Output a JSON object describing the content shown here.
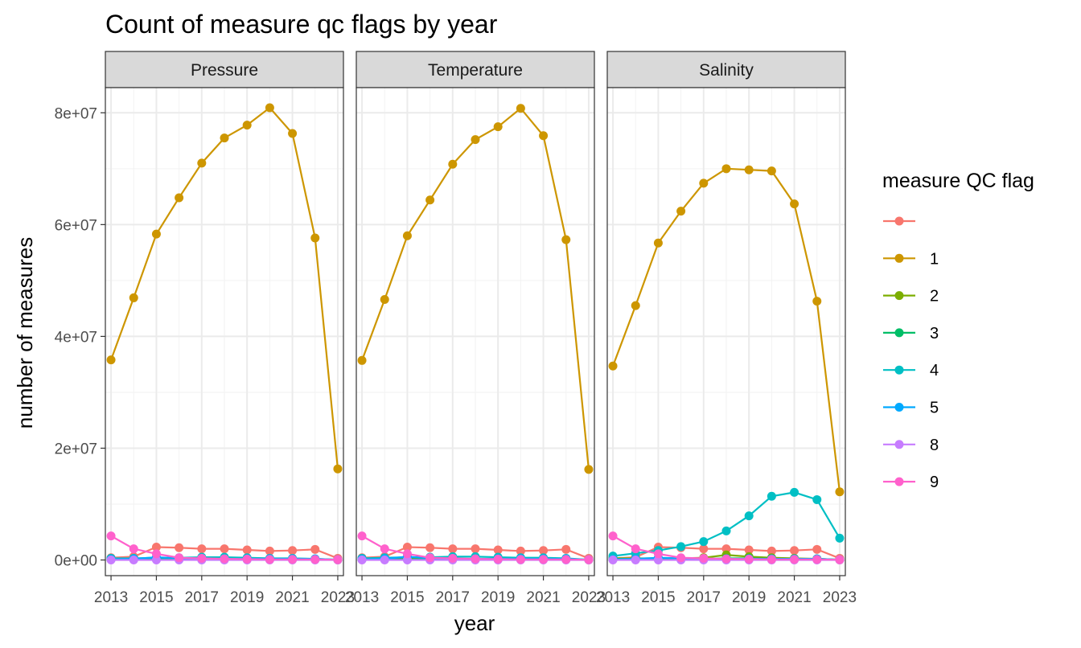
{
  "chart_data": {
    "type": "line",
    "title": "Count of measure qc flags by year",
    "xlabel": "year",
    "ylabel": "number of measures",
    "legend_title": "measure QC flag",
    "legend_position": "right",
    "grid": true,
    "xlim": [
      2012.75,
      2023.25
    ],
    "ylim": [
      -2800000,
      84500000
    ],
    "x_ticks": [
      2013,
      2015,
      2017,
      2019,
      2021,
      2023
    ],
    "x_tick_labels": [
      "2013",
      "2015",
      "2017",
      "2019",
      "2021",
      "2023"
    ],
    "y_ticks": [
      0,
      20000000,
      40000000,
      60000000,
      80000000
    ],
    "y_tick_labels": [
      "0e+00",
      "2e+07",
      "4e+07",
      "6e+07",
      "8e+07"
    ],
    "x": [
      2013,
      2014,
      2015,
      2016,
      2017,
      2018,
      2019,
      2020,
      2021,
      2022,
      2023
    ],
    "series_meta": [
      {
        "name": "",
        "color": "#F8766D"
      },
      {
        "name": "1",
        "color": "#CD9600"
      },
      {
        "name": "2",
        "color": "#7CAE00"
      },
      {
        "name": "3",
        "color": "#00BE67"
      },
      {
        "name": "4",
        "color": "#00BFC4"
      },
      {
        "name": "5",
        "color": "#00A9FF"
      },
      {
        "name": "8",
        "color": "#C77CFF"
      },
      {
        "name": "9",
        "color": "#FF61CC"
      }
    ],
    "panels": [
      {
        "name": "Pressure",
        "series": [
          {
            "name": "",
            "values": [
              400000,
              600000,
              2300000,
              2200000,
              2000000,
              2000000,
              1800000,
              1600000,
              1700000,
              1900000,
              300000
            ]
          },
          {
            "name": "1",
            "values": [
              35800000,
              46900000,
              58300000,
              64800000,
              71000000,
              75500000,
              77800000,
              80900000,
              76300000,
              57600000,
              16300000
            ]
          },
          {
            "name": "2",
            "values": [
              200000,
              200000,
              200000,
              200000,
              200000,
              200000,
              200000,
              150000,
              150000,
              150000,
              50000
            ]
          },
          {
            "name": "3",
            "values": [
              100000,
              100000,
              100000,
              100000,
              100000,
              100000,
              100000,
              100000,
              100000,
              100000,
              20000
            ]
          },
          {
            "name": "4",
            "values": [
              300000,
              300000,
              400000,
              400000,
              500000,
              500000,
              400000,
              300000,
              300000,
              200000,
              50000
            ]
          },
          {
            "name": "5",
            "values": [
              100000,
              200000,
              500000,
              300000,
              200000,
              200000,
              200000,
              200000,
              200000,
              200000,
              50000
            ]
          },
          {
            "name": "8",
            "values": [
              0,
              0,
              0,
              0,
              0,
              0,
              0,
              0,
              0,
              0,
              0
            ]
          },
          {
            "name": "9",
            "values": [
              4300000,
              2000000,
              1100000,
              400000,
              300000,
              200000,
              150000,
              100000,
              100000,
              100000,
              50000
            ]
          }
        ]
      },
      {
        "name": "Temperature",
        "series": [
          {
            "name": "",
            "values": [
              400000,
              600000,
              2300000,
              2200000,
              2000000,
              2000000,
              1800000,
              1600000,
              1700000,
              1900000,
              300000
            ]
          },
          {
            "name": "1",
            "values": [
              35700000,
              46600000,
              58000000,
              64400000,
              70800000,
              75200000,
              77500000,
              80800000,
              75900000,
              57300000,
              16200000
            ]
          },
          {
            "name": "2",
            "values": [
              200000,
              200000,
              200000,
              200000,
              200000,
              200000,
              200000,
              150000,
              150000,
              150000,
              50000
            ]
          },
          {
            "name": "3",
            "values": [
              100000,
              100000,
              100000,
              100000,
              100000,
              100000,
              100000,
              100000,
              100000,
              100000,
              20000
            ]
          },
          {
            "name": "4",
            "values": [
              300000,
              400000,
              500000,
              500000,
              600000,
              600000,
              500000,
              400000,
              400000,
              300000,
              50000
            ]
          },
          {
            "name": "5",
            "values": [
              100000,
              200000,
              600000,
              300000,
              200000,
              200000,
              200000,
              200000,
              200000,
              200000,
              50000
            ]
          },
          {
            "name": "8",
            "values": [
              0,
              0,
              0,
              0,
              0,
              0,
              0,
              0,
              0,
              0,
              0
            ]
          },
          {
            "name": "9",
            "values": [
              4300000,
              2000000,
              1100000,
              400000,
              300000,
              200000,
              150000,
              100000,
              100000,
              100000,
              50000
            ]
          }
        ]
      },
      {
        "name": "Salinity",
        "series": [
          {
            "name": "",
            "values": [
              300000,
              500000,
              2300000,
              2200000,
              2000000,
              2000000,
              1800000,
              1600000,
              1700000,
              1900000,
              300000
            ]
          },
          {
            "name": "1",
            "values": [
              34700000,
              45500000,
              56700000,
              62400000,
              67400000,
              70000000,
              69800000,
              69600000,
              63700000,
              46300000,
              12200000
            ]
          },
          {
            "name": "2",
            "values": [
              300000,
              300000,
              300000,
              300000,
              400000,
              900000,
              600000,
              400000,
              300000,
              200000,
              50000
            ]
          },
          {
            "name": "3",
            "values": [
              200000,
              200000,
              200000,
              200000,
              200000,
              300000,
              300000,
              200000,
              200000,
              200000,
              50000
            ]
          },
          {
            "name": "4",
            "values": [
              700000,
              1200000,
              1700000,
              2400000,
              3300000,
              5200000,
              7900000,
              11400000,
              12100000,
              10800000,
              3900000
            ]
          },
          {
            "name": "5",
            "values": [
              100000,
              200000,
              400000,
              300000,
              200000,
              200000,
              200000,
              200000,
              200000,
              200000,
              50000
            ]
          },
          {
            "name": "8",
            "values": [
              0,
              0,
              0,
              0,
              0,
              0,
              0,
              0,
              0,
              0,
              0
            ]
          },
          {
            "name": "9",
            "values": [
              4300000,
              2000000,
              1100000,
              400000,
              300000,
              200000,
              150000,
              100000,
              100000,
              100000,
              50000
            ]
          }
        ]
      }
    ]
  }
}
